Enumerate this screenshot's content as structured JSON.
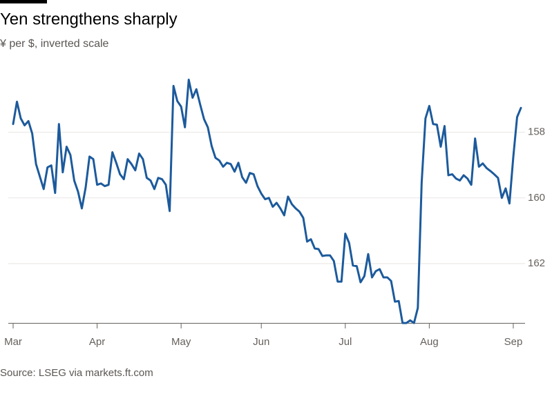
{
  "chart_data": {
    "type": "line",
    "title": "Yen strengthens sharply",
    "subtitle": "¥ per $, inverted scale",
    "source": "Source: LSEG via markets.ft.com",
    "y_inverted": true,
    "ylim": [
      156.2,
      163.85
    ],
    "yticks": [
      158,
      160,
      162
    ],
    "grid": true,
    "categories": [
      "Mar",
      null,
      null,
      null,
      null,
      null,
      null,
      null,
      null,
      null,
      null,
      null,
      null,
      null,
      null,
      null,
      null,
      null,
      null,
      null,
      null,
      null,
      "Apr",
      null,
      null,
      null,
      null,
      null,
      null,
      null,
      null,
      null,
      null,
      null,
      null,
      null,
      null,
      null,
      null,
      null,
      null,
      null,
      null,
      null,
      "May",
      null,
      null,
      null,
      null,
      null,
      null,
      null,
      null,
      null,
      null,
      null,
      null,
      null,
      null,
      null,
      null,
      null,
      null,
      null,
      null,
      "Jun",
      null,
      null,
      null,
      null,
      null,
      null,
      null,
      null,
      null,
      null,
      null,
      null,
      null,
      null,
      null,
      null,
      null,
      null,
      null,
      null,
      null,
      "Jul",
      null,
      null,
      null,
      null,
      null,
      null,
      null,
      null,
      null,
      null,
      null,
      null,
      null,
      null,
      null,
      null,
      null,
      null,
      null,
      null,
      null,
      "Aug",
      null,
      null,
      null,
      null,
      null,
      null,
      null,
      null,
      null,
      null,
      null,
      null,
      null,
      null,
      null,
      null,
      null,
      null,
      null,
      null,
      null,
      "Sep",
      null,
      null
    ],
    "series": [
      {
        "name": "¥ per $",
        "color": "#1c5a9c",
        "values": [
          157.75,
          157.07,
          157.58,
          157.79,
          157.66,
          158.04,
          158.97,
          159.35,
          159.73,
          159.07,
          159.01,
          159.85,
          157.75,
          159.22,
          158.44,
          158.69,
          159.47,
          159.81,
          160.32,
          159.68,
          158.74,
          158.82,
          159.6,
          159.56,
          159.64,
          159.6,
          158.61,
          158.93,
          159.28,
          159.43,
          158.82,
          158.97,
          159.16,
          158.65,
          158.82,
          159.39,
          159.47,
          159.73,
          159.39,
          159.43,
          159.6,
          160.4,
          156.59,
          157.05,
          157.22,
          157.85,
          156.4,
          156.95,
          156.69,
          157.16,
          157.6,
          157.85,
          158.42,
          158.78,
          158.86,
          159.05,
          158.93,
          158.97,
          159.2,
          158.93,
          159.37,
          159.54,
          159.24,
          159.28,
          159.64,
          159.87,
          160.04,
          160.0,
          160.27,
          160.15,
          160.32,
          160.53,
          159.96,
          160.19,
          160.32,
          160.42,
          160.61,
          161.33,
          161.26,
          161.54,
          161.56,
          161.77,
          161.75,
          161.75,
          161.92,
          162.55,
          162.55,
          161.09,
          161.37,
          162.06,
          162.08,
          162.57,
          162.38,
          161.71,
          162.42,
          162.23,
          162.17,
          162.42,
          162.42,
          162.53,
          163.16,
          163.14,
          163.81,
          163.81,
          163.73,
          163.81,
          163.35,
          159.54,
          157.58,
          157.2,
          157.75,
          157.77,
          158.44,
          157.81,
          159.31,
          159.28,
          159.41,
          159.47,
          159.31,
          159.41,
          159.6,
          158.19,
          159.05,
          158.95,
          159.09,
          159.18,
          159.28,
          159.39,
          160.0,
          159.71,
          160.17,
          158.76,
          157.54,
          157.26
        ]
      }
    ]
  }
}
